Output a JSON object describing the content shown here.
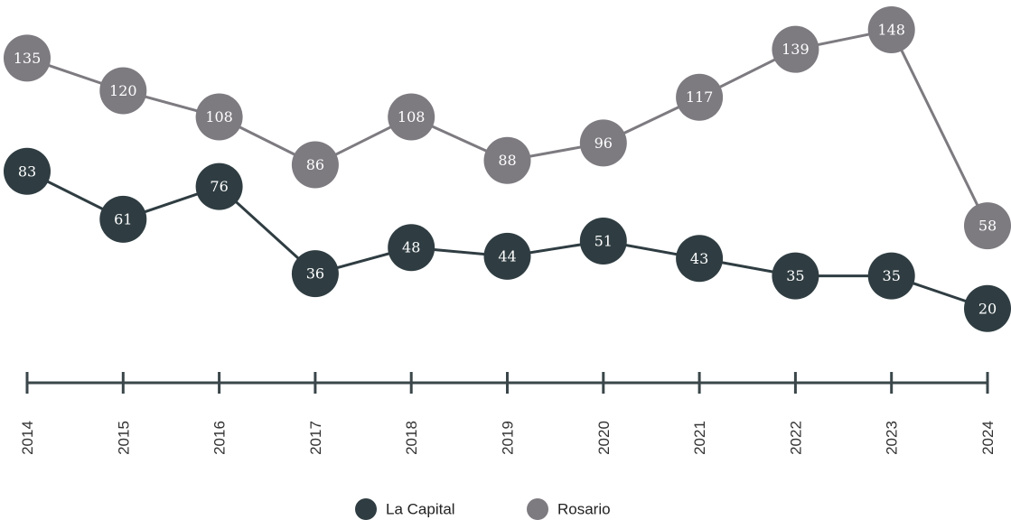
{
  "chart_data": {
    "type": "line",
    "categories": [
      "2014",
      "2015",
      "2016",
      "2017",
      "2018",
      "2019",
      "2020",
      "2021",
      "2022",
      "2023",
      "2024"
    ],
    "series": [
      {
        "name": "La Capital",
        "color": "#2f3d42",
        "values": [
          83,
          61,
          76,
          36,
          48,
          44,
          51,
          43,
          35,
          35,
          20
        ]
      },
      {
        "name": "Rosario",
        "color": "#7d7a80",
        "values": [
          135,
          120,
          108,
          86,
          108,
          88,
          96,
          117,
          139,
          148,
          58
        ]
      }
    ],
    "ylim": [
      0,
      160
    ]
  }
}
